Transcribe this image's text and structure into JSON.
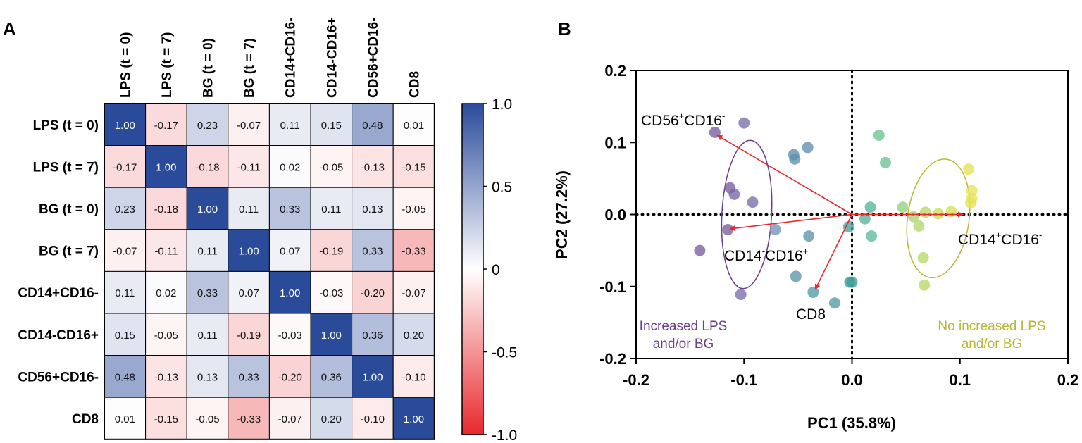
{
  "chart_data": [
    {
      "type": "heatmap",
      "panel_label": "A",
      "row_labels": [
        "LPS (t = 0)",
        "LPS (t = 7)",
        "BG (t = 0)",
        "BG (t = 7)",
        "CD14+CD16-",
        "CD14-CD16+",
        "CD56+CD16-",
        "CD8"
      ],
      "col_labels": [
        "LPS (t = 0)",
        "LPS (t = 7)",
        "BG (t = 0)",
        "BG (t = 7)",
        "CD14+CD16-",
        "CD14-CD16+",
        "CD56+CD16-",
        "CD8"
      ],
      "values": [
        [
          1.0,
          -0.17,
          0.23,
          -0.07,
          0.11,
          0.15,
          0.48,
          0.01
        ],
        [
          -0.17,
          1.0,
          -0.18,
          -0.11,
          0.02,
          -0.05,
          -0.13,
          -0.15
        ],
        [
          0.23,
          -0.18,
          1.0,
          0.11,
          0.33,
          0.11,
          0.13,
          -0.05
        ],
        [
          -0.07,
          -0.11,
          0.11,
          1.0,
          0.07,
          -0.19,
          0.33,
          -0.33
        ],
        [
          0.11,
          0.02,
          0.33,
          0.07,
          1.0,
          -0.03,
          -0.2,
          -0.07
        ],
        [
          0.15,
          -0.05,
          0.11,
          -0.19,
          -0.03,
          1.0,
          0.36,
          0.2
        ],
        [
          0.48,
          -0.13,
          0.13,
          0.33,
          -0.2,
          0.36,
          1.0,
          -0.1
        ],
        [
          0.01,
          -0.15,
          -0.05,
          -0.33,
          -0.07,
          0.2,
          -0.1,
          1.0
        ]
      ],
      "colorbar": {
        "min": -1.0,
        "max": 1.0,
        "ticks": [
          "1.0",
          "0.5",
          "0",
          "-0.5",
          "-1.0"
        ],
        "tick_values": [
          1.0,
          0.5,
          0,
          -0.5,
          -1.0
        ],
        "colors": {
          "high": "#2a4a9a",
          "mid": "#ffffff",
          "low": "#e8282c"
        }
      }
    },
    {
      "type": "scatter",
      "panel_label": "B",
      "xlabel": "PC1 (35.8%)",
      "ylabel": "PC2 (27.2%)",
      "xlim": [
        -0.2,
        0.2
      ],
      "ylim": [
        -0.2,
        0.2
      ],
      "xticks": [
        "-0.2",
        "-0.1",
        "0.0",
        "0.1",
        "0.2"
      ],
      "xtick_values": [
        -0.2,
        -0.1,
        0.0,
        0.1,
        0.2
      ],
      "yticks": [
        "0.2",
        "0.1",
        "0.0",
        "-0.1",
        "-0.2"
      ],
      "ytick_values": [
        0.2,
        0.1,
        0.0,
        -0.1,
        -0.2
      ],
      "points": [
        {
          "x": -0.127,
          "y": 0.114,
          "color": "#7a5c9e"
        },
        {
          "x": -0.1,
          "y": 0.127,
          "color": "#7a70a8"
        },
        {
          "x": -0.113,
          "y": 0.037,
          "color": "#7a5c9e"
        },
        {
          "x": -0.109,
          "y": 0.028,
          "color": "#7a65a5"
        },
        {
          "x": -0.092,
          "y": 0.017,
          "color": "#7a70a8"
        },
        {
          "x": -0.115,
          "y": -0.021,
          "color": "#7a5c9e"
        },
        {
          "x": -0.071,
          "y": -0.021,
          "color": "#7493b4"
        },
        {
          "x": -0.141,
          "y": -0.05,
          "color": "#7a5c9e"
        },
        {
          "x": -0.103,
          "y": -0.111,
          "color": "#7a70a8"
        },
        {
          "x": -0.054,
          "y": 0.083,
          "color": "#5f8fae"
        },
        {
          "x": -0.053,
          "y": 0.077,
          "color": "#5f8fae"
        },
        {
          "x": -0.041,
          "y": 0.093,
          "color": "#5f8fae"
        },
        {
          "x": -0.04,
          "y": -0.03,
          "color": "#5e93ae"
        },
        {
          "x": -0.052,
          "y": -0.086,
          "color": "#5e93ae"
        },
        {
          "x": -0.036,
          "y": -0.108,
          "color": "#4f9aa6"
        },
        {
          "x": -0.016,
          "y": -0.123,
          "color": "#4f9aa6"
        },
        {
          "x": -0.002,
          "y": -0.094,
          "color": "#3f9e98"
        },
        {
          "x": 0.0,
          "y": -0.094,
          "color": "#3f9e98"
        },
        {
          "x": -0.003,
          "y": -0.017,
          "color": "#44a49a"
        },
        {
          "x": 0.012,
          "y": -0.006,
          "color": "#55b39a"
        },
        {
          "x": 0.017,
          "y": 0.01,
          "color": "#55b39a"
        },
        {
          "x": 0.018,
          "y": -0.03,
          "color": "#5cbb9a"
        },
        {
          "x": 0.025,
          "y": 0.11,
          "color": "#6cc394"
        },
        {
          "x": 0.031,
          "y": 0.072,
          "color": "#6cc394"
        },
        {
          "x": 0.047,
          "y": 0.01,
          "color": "#93cf80"
        },
        {
          "x": 0.057,
          "y": -0.003,
          "color": "#a7d676"
        },
        {
          "x": 0.062,
          "y": -0.016,
          "color": "#b0d86e"
        },
        {
          "x": 0.068,
          "y": 0.003,
          "color": "#bada66"
        },
        {
          "x": 0.066,
          "y": -0.06,
          "color": "#b8d868"
        },
        {
          "x": 0.067,
          "y": -0.098,
          "color": "#b8d868"
        },
        {
          "x": 0.08,
          "y": 0.001,
          "color": "#c8dd5c"
        },
        {
          "x": 0.092,
          "y": 0.004,
          "color": "#d6e054"
        },
        {
          "x": 0.108,
          "y": 0.063,
          "color": "#e4e256"
        },
        {
          "x": 0.111,
          "y": 0.033,
          "color": "#e8e356"
        },
        {
          "x": 0.111,
          "y": 0.022,
          "color": "#e8e356"
        },
        {
          "x": 0.11,
          "y": 0.016,
          "color": "#e8e356"
        }
      ],
      "arrows": [
        {
          "label": "CD56+CD16-",
          "x": -0.125,
          "y": 0.11
        },
        {
          "label": "CD14-CD16+",
          "x": -0.113,
          "y": -0.02
        },
        {
          "label": "CD8",
          "x": -0.034,
          "y": -0.104
        },
        {
          "label": "CD14+CD16-",
          "x": 0.103,
          "y": 0.0
        }
      ],
      "arrow_labels": [
        {
          "main": "CD56",
          "sup1": "+",
          "mid": "CD16",
          "sup2": "-"
        },
        {
          "main": "CD14",
          "sup1": "-",
          "mid": "CD16",
          "sup2": "+"
        },
        {
          "main": "CD8"
        },
        {
          "main": "CD14",
          "sup1": "+",
          "mid": "CD16",
          "sup2": "-"
        }
      ],
      "groups": [
        {
          "line1": "Increased LPS",
          "line2": "and/or BG",
          "color": "#6a3d8f"
        },
        {
          "line1": "No increased LPS",
          "line2": "and/or BG",
          "color": "#b8b830"
        }
      ]
    }
  ]
}
